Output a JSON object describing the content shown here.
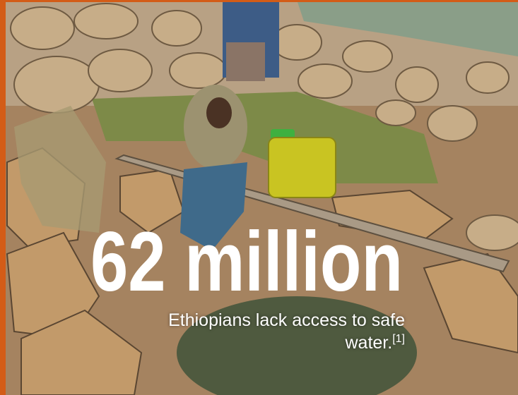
{
  "headline": "62 million",
  "caption": "Ethiopians lack access to safe water.",
  "footnote": "[1]"
}
